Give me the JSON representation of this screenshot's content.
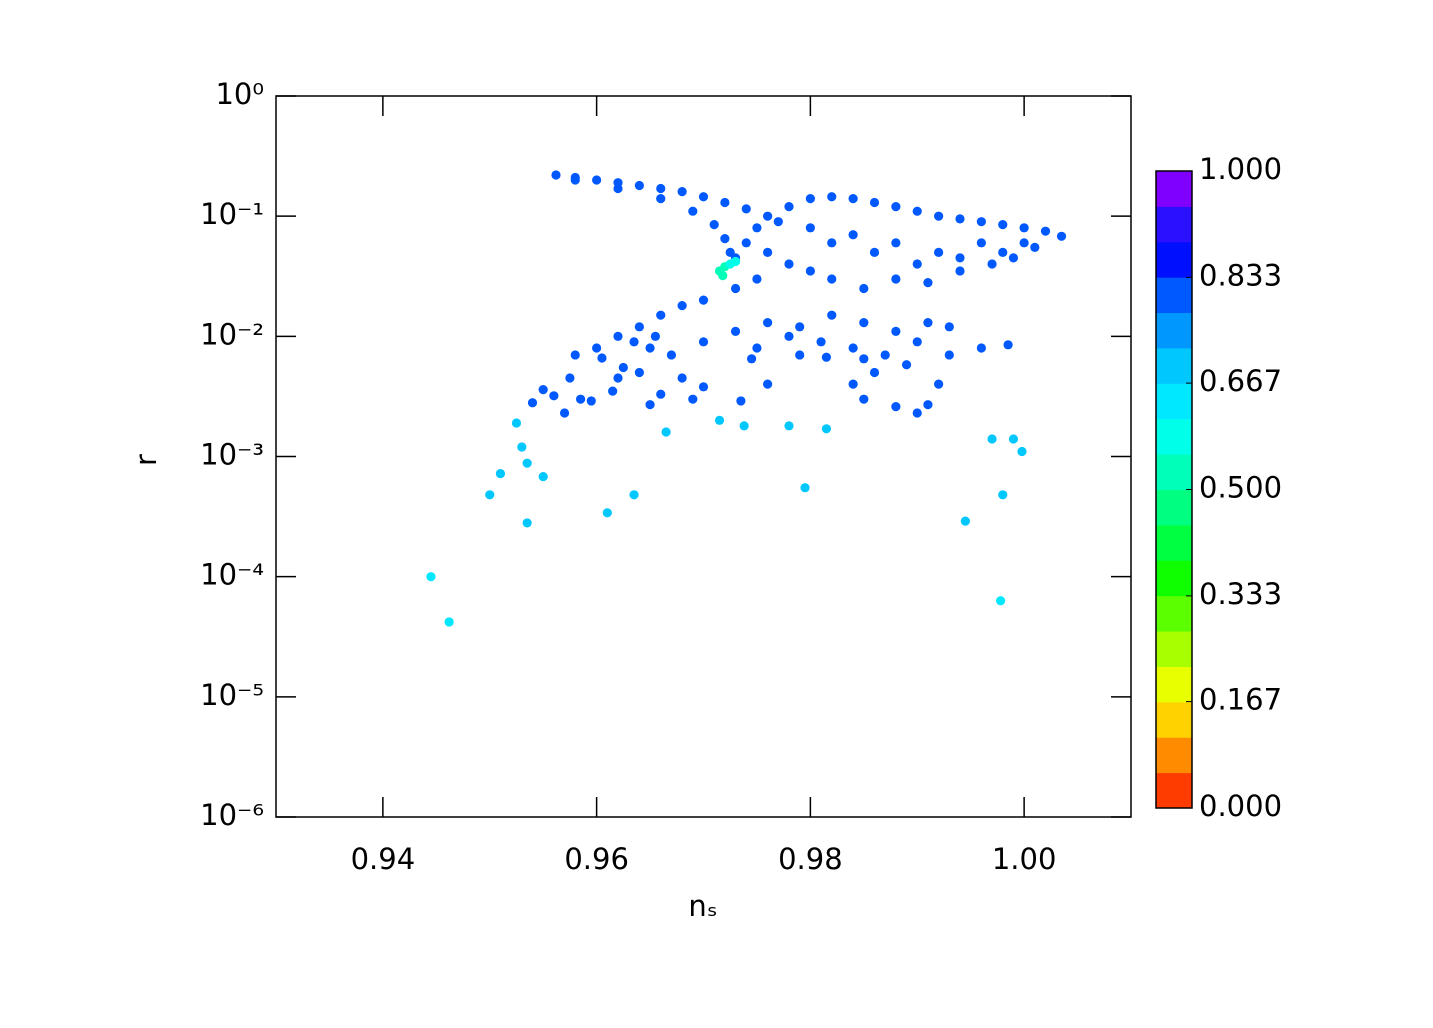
{
  "chart_data": {
    "type": "scatter",
    "xlabel": "nₛ",
    "ylabel": "r",
    "xlim": [
      0.93,
      1.01
    ],
    "xticks": [
      0.94,
      0.96,
      0.98,
      {
        "value": 1.0,
        "label": "1.00"
      }
    ],
    "ylim": [
      1e-06,
      1
    ],
    "yscale": "log",
    "yticks": [
      {
        "value": 1e-06,
        "label": "10⁻⁶"
      },
      {
        "value": 1e-05,
        "label": "10⁻⁵"
      },
      {
        "value": 0.0001,
        "label": "10⁻⁴"
      },
      {
        "value": 0.001,
        "label": "10⁻³"
      },
      {
        "value": 0.01,
        "label": "10⁻²"
      },
      {
        "value": 0.1,
        "label": "10⁻¹"
      },
      {
        "value": 1,
        "label": "10⁰"
      }
    ],
    "colorbar": {
      "lim": [
        0,
        1
      ],
      "colors": [
        "#ff3c00",
        "#ff8c00",
        "#ffd200",
        "#e8ff00",
        "#a8ff00",
        "#5cff00",
        "#10ff00",
        "#00ff40",
        "#00ff80",
        "#00ffb8",
        "#00ffe8",
        "#00e8ff",
        "#00c8ff",
        "#0098ff",
        "#0058ff",
        "#0010ff",
        "#2a10ff",
        "#8000ff"
      ],
      "ticks": [
        {
          "value": 0,
          "label": "0.000"
        },
        0.167,
        0.333,
        {
          "value": 0.5,
          "label": "0.500"
        },
        0.667,
        0.833,
        {
          "value": 1,
          "label": "1.000"
        }
      ]
    },
    "series": [
      {
        "color_value": 0.82,
        "x": [
          0.9562,
          0.958,
          0.96,
          0.962,
          0.964,
          0.966,
          0.968,
          0.97,
          0.972,
          0.974,
          0.976,
          0.958,
          0.962,
          0.966,
          0.969,
          0.971,
          0.972,
          0.9725,
          0.973,
          0.974,
          0.975
        ],
        "values": [
          0.22,
          0.21,
          0.2,
          0.19,
          0.18,
          0.17,
          0.16,
          0.145,
          0.13,
          0.115,
          0.1,
          0.2,
          0.17,
          0.14,
          0.11,
          0.085,
          0.065,
          0.05,
          0.045,
          0.06,
          0.08
        ]
      },
      {
        "color_value": 0.81,
        "x": [
          0.977,
          0.978,
          0.98,
          0.982,
          0.984,
          0.986,
          0.988,
          0.99,
          0.992,
          0.994,
          0.996,
          0.998,
          1.0,
          1.002,
          1.0035,
          0.98,
          0.982,
          0.984,
          0.986,
          0.988,
          0.99,
          0.992,
          0.994,
          0.996,
          0.998,
          1.0,
          0.976,
          0.978,
          0.98,
          0.975,
          0.973,
          0.97,
          0.968,
          0.966,
          0.964,
          0.962,
          0.96,
          0.958,
          0.982,
          0.985,
          0.988,
          0.991,
          0.994,
          0.997,
          0.999,
          1.001
        ],
        "values": [
          0.09,
          0.12,
          0.14,
          0.145,
          0.14,
          0.13,
          0.12,
          0.11,
          0.1,
          0.095,
          0.09,
          0.085,
          0.08,
          0.075,
          0.068,
          0.08,
          0.06,
          0.07,
          0.05,
          0.06,
          0.04,
          0.05,
          0.045,
          0.06,
          0.05,
          0.06,
          0.05,
          0.04,
          0.035,
          0.03,
          0.025,
          0.02,
          0.018,
          0.015,
          0.012,
          0.01,
          0.008,
          0.007,
          0.03,
          0.025,
          0.03,
          0.028,
          0.035,
          0.04,
          0.045,
          0.055
        ]
      },
      {
        "color_value": 0.78,
        "x": [
          0.9635,
          0.965,
          0.967,
          0.97,
          0.973,
          0.976,
          0.979,
          0.982,
          0.985,
          0.988,
          0.991,
          0.993,
          0.9655,
          0.975,
          0.978,
          0.981,
          0.984,
          0.987,
          0.99,
          0.993,
          0.996,
          0.9985,
          0.979,
          0.985,
          0.9605,
          0.9625,
          0.964,
          0.968,
          0.97,
          0.9745,
          0.9815,
          0.986,
          0.989,
          0.992,
          0.984,
          0.976,
          0.969,
          0.962,
          0.9615,
          0.965,
          0.9575,
          0.9585,
          0.956,
          0.954,
          0.955,
          0.957,
          0.9595,
          0.966,
          0.9735,
          0.985,
          0.988,
          0.99,
          0.991
        ],
        "values": [
          0.009,
          0.008,
          0.007,
          0.009,
          0.011,
          0.013,
          0.012,
          0.015,
          0.013,
          0.011,
          0.013,
          0.012,
          0.01,
          0.008,
          0.01,
          0.009,
          0.008,
          0.007,
          0.009,
          0.007,
          0.008,
          0.0085,
          0.007,
          0.0065,
          0.0066,
          0.0055,
          0.005,
          0.0045,
          0.0038,
          0.0065,
          0.0067,
          0.005,
          0.0058,
          0.004,
          0.004,
          0.004,
          0.003,
          0.0045,
          0.0035,
          0.0027,
          0.0045,
          0.003,
          0.0032,
          0.0028,
          0.0036,
          0.0023,
          0.0029,
          0.0033,
          0.0029,
          0.003,
          0.0026,
          0.0023,
          0.0027
        ]
      },
      {
        "color_value": 0.72,
        "x": [
          0.9715,
          0.9738,
          0.978,
          0.9815,
          0.9665,
          0.9525,
          0.953,
          0.9535,
          0.951,
          0.955,
          0.95,
          0.9535,
          0.961,
          0.9635,
          0.9795,
          0.9945,
          0.997,
          0.999,
          0.9998,
          0.998
        ],
        "values": [
          0.002,
          0.0018,
          0.0018,
          0.0017,
          0.0016,
          0.0019,
          0.0012,
          0.00088,
          0.00072,
          0.00068,
          0.00048,
          0.00028,
          0.00034,
          0.00048,
          0.00055,
          0.00029,
          0.0014,
          0.0014,
          0.0011,
          0.00048
        ]
      },
      {
        "color_value": 0.66,
        "x": [
          0.9445,
          0.9462,
          0.9978
        ],
        "values": [
          0.0001,
          4.2e-05,
          6.3e-05
        ]
      },
      {
        "color_value": 0.5,
        "x": [
          0.9715,
          0.972,
          0.9718
        ],
        "values": [
          0.035,
          0.038,
          0.032
        ]
      },
      {
        "color_value": 0.6,
        "x": [
          0.9725,
          0.973
        ],
        "values": [
          0.04,
          0.042
        ]
      }
    ]
  }
}
